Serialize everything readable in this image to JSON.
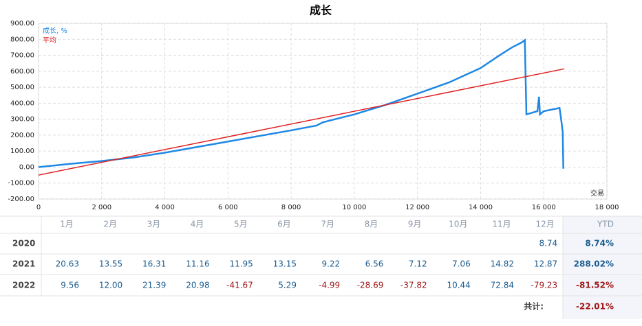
{
  "chart_data": {
    "type": "line",
    "title": "成长",
    "x_label": "交易",
    "xlim": [
      0,
      18000
    ],
    "xticks": [
      0,
      {
        "value": 2000,
        "label": "2 000"
      },
      {
        "value": 4000,
        "label": "4 000"
      },
      {
        "value": 6000,
        "label": "6 000"
      },
      {
        "value": 8000,
        "label": "8 000"
      },
      {
        "value": 10000,
        "label": "10 000"
      },
      {
        "value": 12000,
        "label": "12 000"
      },
      {
        "value": 14000,
        "label": "14 000"
      },
      {
        "value": 16000,
        "label": "16 000"
      },
      {
        "value": 18000,
        "label": "18 000"
      }
    ],
    "ylim": [
      -200,
      900
    ],
    "yticks": [
      {
        "value": -200,
        "label": "-200.00"
      },
      {
        "value": -100,
        "label": "-100.00"
      },
      {
        "value": 0,
        "label": "0.00"
      },
      {
        "value": 100,
        "label": "100.00"
      },
      {
        "value": 200,
        "label": "200.00"
      },
      {
        "value": 300,
        "label": "300.00"
      },
      {
        "value": 400,
        "label": "400.00"
      },
      {
        "value": 500,
        "label": "500.00"
      },
      {
        "value": 600,
        "label": "600.00"
      },
      {
        "value": 700,
        "label": "700.00"
      },
      {
        "value": 800,
        "label": "800.00"
      },
      {
        "value": 900,
        "label": "900.00"
      }
    ],
    "grid": true,
    "series": [
      {
        "name": "成长, %",
        "color": "#1e88e5",
        "x": [
          0,
          1000,
          2000,
          3000,
          4000,
          5000,
          6000,
          7000,
          8000,
          8800,
          9000,
          9200,
          10000,
          11000,
          12000,
          13000,
          14000,
          14600,
          15000,
          15300,
          15400,
          15450,
          15800,
          15850,
          15880,
          16000,
          16500,
          16550,
          16600,
          16620
        ],
        "values": [
          0,
          20,
          38,
          60,
          90,
          125,
          160,
          195,
          230,
          260,
          280,
          290,
          330,
          390,
          460,
          530,
          620,
          700,
          750,
          780,
          795,
          330,
          350,
          440,
          330,
          350,
          370,
          300,
          220,
          -10
        ]
      },
      {
        "name": "平均",
        "color": "#e02020",
        "x": [
          0,
          16650
        ],
        "values": [
          -50,
          615
        ]
      }
    ]
  },
  "table": {
    "header": {
      "months": [
        "1月",
        "2月",
        "3月",
        "4月",
        "5月",
        "6月",
        "7月",
        "8月",
        "9月",
        "10月",
        "11月",
        "12月"
      ],
      "ytd": "YTD"
    },
    "rows": [
      {
        "year": "2020",
        "cells": [
          null,
          null,
          null,
          null,
          null,
          null,
          null,
          null,
          null,
          null,
          null,
          "8.74"
        ],
        "ytd": "8.74%"
      },
      {
        "year": "2021",
        "cells": [
          "20.63",
          "13.55",
          "16.31",
          "11.16",
          "11.95",
          "13.15",
          "9.22",
          "6.56",
          "7.12",
          "7.06",
          "14.82",
          "12.87"
        ],
        "ytd": "288.02%"
      },
      {
        "year": "2022",
        "cells": [
          "9.56",
          "12.00",
          "21.39",
          "20.98",
          "-41.67",
          "5.29",
          "-4.99",
          "-28.69",
          "-37.82",
          "10.44",
          "72.84",
          "-79.23"
        ],
        "ytd": "-81.52%"
      }
    ],
    "total": {
      "label": "共计:",
      "value": "-22.01%"
    }
  }
}
